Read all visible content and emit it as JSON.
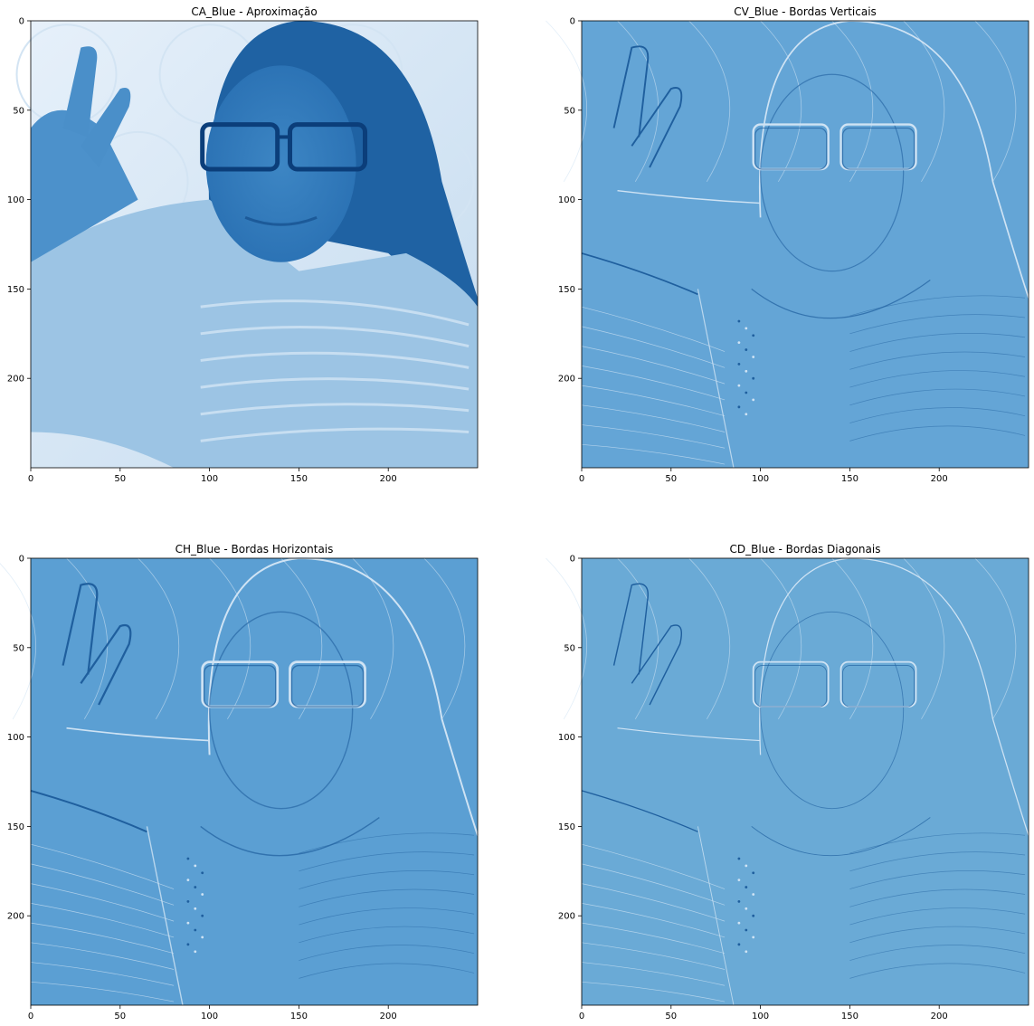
{
  "chart_data": [
    {
      "type": "heatmap",
      "title": "CA_Blue - Aproximação",
      "colormap": "Blues",
      "xlim": [
        0,
        250
      ],
      "ylim": [
        250,
        0
      ],
      "xticks": [
        0,
        50,
        100,
        150,
        200
      ],
      "yticks": [
        0,
        50,
        100,
        150,
        200
      ],
      "content": "Wavelet approximation coefficients of a portrait photo in blue tones",
      "variant": "approx",
      "base_color": "#5b9ed0"
    },
    {
      "type": "heatmap",
      "title": "CV_Blue - Bordas Verticais",
      "colormap": "Blues",
      "xlim": [
        0,
        250
      ],
      "ylim": [
        250,
        0
      ],
      "xticks": [
        0,
        50,
        100,
        150,
        200
      ],
      "yticks": [
        0,
        50,
        100,
        150,
        200
      ],
      "content": "Vertical detail coefficients (vertical edges)",
      "variant": "detail",
      "base_color": "#64a5d6"
    },
    {
      "type": "heatmap",
      "title": "CH_Blue - Bordas Horizontais",
      "colormap": "Blues",
      "xlim": [
        0,
        250
      ],
      "ylim": [
        250,
        0
      ],
      "xticks": [
        0,
        50,
        100,
        150,
        200
      ],
      "yticks": [
        0,
        50,
        100,
        150,
        200
      ],
      "content": "Horizontal detail coefficients (horizontal edges)",
      "variant": "detail",
      "base_color": "#5b9fd3"
    },
    {
      "type": "heatmap",
      "title": "CD_Blue - Bordas Diagonais",
      "colormap": "Blues",
      "xlim": [
        0,
        250
      ],
      "ylim": [
        250,
        0
      ],
      "xticks": [
        0,
        50,
        100,
        150,
        200
      ],
      "yticks": [
        0,
        50,
        100,
        150,
        200
      ],
      "content": "Diagonal detail coefficients (diagonal edges)",
      "variant": "detail",
      "base_color": "#6aaad6"
    }
  ]
}
